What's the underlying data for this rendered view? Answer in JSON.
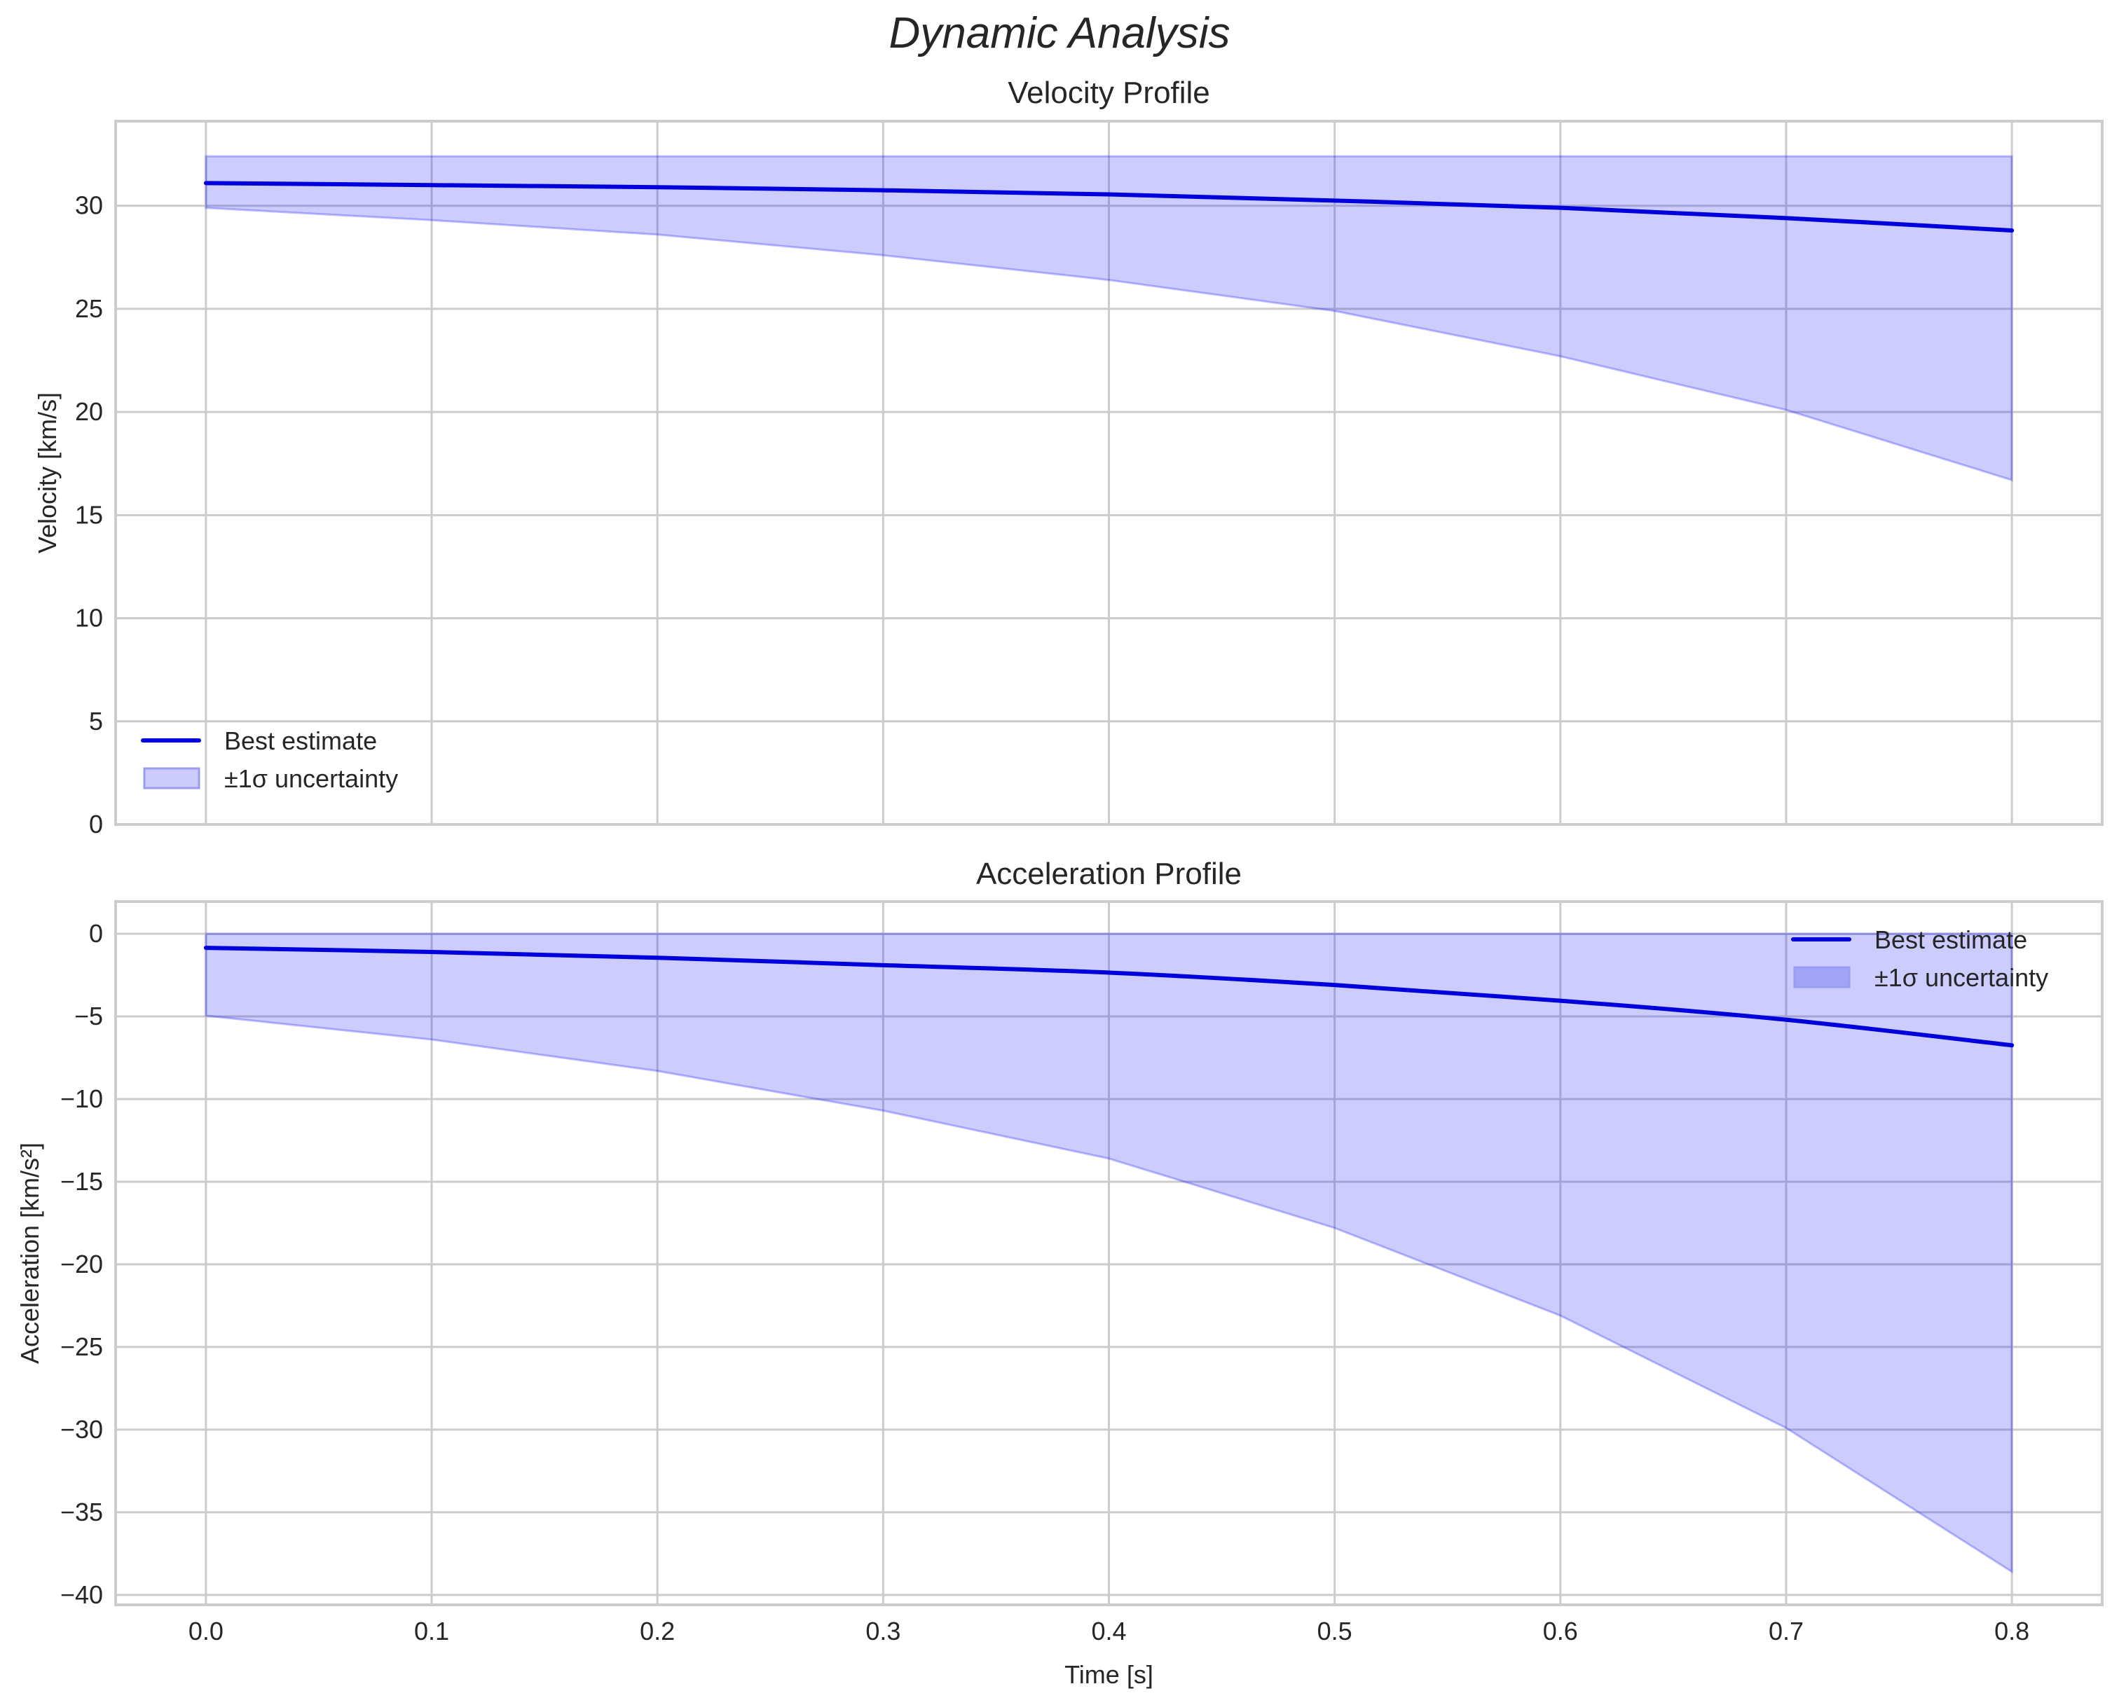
{
  "figure": {
    "title": "Dynamic Analysis"
  },
  "colors": {
    "line": "#0000dd",
    "band_fill": "#ccccfb",
    "band_edge": "#8a8ae6",
    "grid": "#cccccc",
    "spine": "#cccccc",
    "text": "#262626"
  },
  "chart_data": [
    {
      "type": "line",
      "title": "Velocity Profile",
      "xlabel": "",
      "ylabel": "Velocity [km/s]",
      "xlim": [
        -0.04,
        0.84
      ],
      "ylim": [
        0,
        34.1
      ],
      "xticks": [
        "0.0",
        "0.1",
        "0.2",
        "0.3",
        "0.4",
        "0.5",
        "0.6",
        "0.7",
        "0.8"
      ],
      "xticks_visible": false,
      "yticks": [
        0,
        5,
        10,
        15,
        20,
        25,
        30
      ],
      "ytick_labels": [
        "0",
        "5",
        "10",
        "15",
        "20",
        "25",
        "30"
      ],
      "grid": true,
      "legend_position": "lower left",
      "x": [
        0.0,
        0.1,
        0.2,
        0.3,
        0.4,
        0.5,
        0.6,
        0.7,
        0.8
      ],
      "series": [
        {
          "name": "Best estimate",
          "kind": "line",
          "values": [
            31.1,
            31.0,
            30.9,
            30.75,
            30.55,
            30.25,
            29.9,
            29.4,
            28.8
          ]
        },
        {
          "name": "±1σ uncertainty",
          "kind": "band",
          "upper": [
            32.4,
            32.4,
            32.4,
            32.4,
            32.4,
            32.4,
            32.4,
            32.4,
            32.4
          ],
          "lower": [
            29.9,
            29.3,
            28.6,
            27.6,
            26.4,
            24.9,
            22.7,
            20.1,
            16.7
          ]
        }
      ]
    },
    {
      "type": "line",
      "title": "Acceleration Profile",
      "xlabel": "Time [s]",
      "ylabel": "Acceleration [km/s²]",
      "xlim": [
        -0.04,
        0.84
      ],
      "ylim": [
        -40.6,
        1.95
      ],
      "xticks": [
        "0.0",
        "0.1",
        "0.2",
        "0.3",
        "0.4",
        "0.5",
        "0.6",
        "0.7",
        "0.8"
      ],
      "xticks_visible": true,
      "yticks": [
        -40,
        -35,
        -30,
        -25,
        -20,
        -15,
        -10,
        -5,
        0
      ],
      "ytick_labels": [
        "−40",
        "−35",
        "−30",
        "−25",
        "−20",
        "−15",
        "−10",
        "−5",
        "0"
      ],
      "grid": true,
      "legend_position": "upper right",
      "x": [
        0.0,
        0.1,
        0.2,
        0.3,
        0.4,
        0.5,
        0.6,
        0.7,
        0.8
      ],
      "series": [
        {
          "name": "Best estimate",
          "kind": "line",
          "values": [
            -0.85,
            -1.1,
            -1.45,
            -1.9,
            -2.35,
            -3.1,
            -4.05,
            -5.2,
            -6.75
          ]
        },
        {
          "name": "±1σ uncertainty",
          "kind": "band",
          "upper": [
            0,
            0,
            0,
            0,
            0,
            0,
            0,
            0,
            0
          ],
          "lower": [
            -4.96,
            -6.4,
            -8.3,
            -10.7,
            -13.6,
            -17.8,
            -23.1,
            -29.9,
            -38.6
          ]
        }
      ]
    }
  ]
}
